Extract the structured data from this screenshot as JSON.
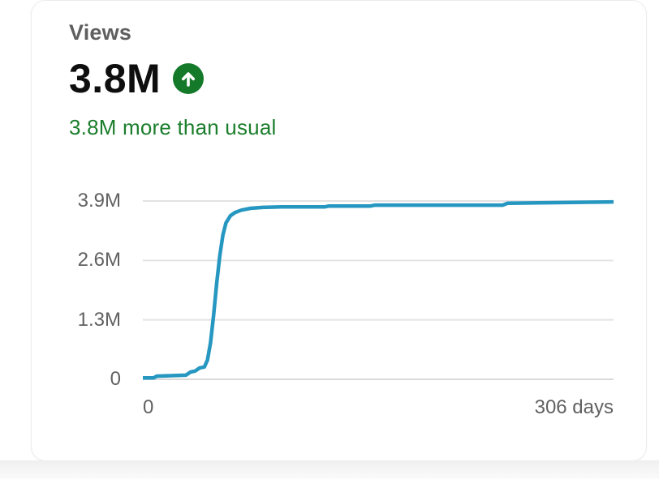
{
  "card": {
    "title": "Views",
    "metric_value": "3.8M",
    "delta_text": "3.8M more than usual",
    "trend_icon": "arrow-up-circle-icon"
  },
  "colors": {
    "line": "#2697c1",
    "positive_text": "#1b7e2c",
    "badge_green": "#15792a",
    "grid": "#e3e3e3",
    "grid_strong": "#d9d9d9",
    "axis_text": "#616161",
    "title_text": "#5f5f5f",
    "metric_text": "#0e0e0e"
  },
  "chart_data": {
    "type": "line",
    "title": "Views",
    "xlabel": "days",
    "ylabel": "views",
    "grid": true,
    "legend": "none",
    "xlim": [
      0,
      306
    ],
    "ylim": [
      0,
      3.9
    ],
    "unit": "millions",
    "x_axis_labels": [
      "0",
      "306 days"
    ],
    "y_ticks": [
      {
        "value": 3.9,
        "label": "3.9M"
      },
      {
        "value": 2.6,
        "label": "2.6M"
      },
      {
        "value": 1.3,
        "label": "1.3M"
      },
      {
        "value": 0,
        "label": "0"
      }
    ],
    "series": [
      {
        "name": "Views",
        "points": [
          [
            0,
            0.03
          ],
          [
            7,
            0.03
          ],
          [
            9,
            0.07
          ],
          [
            28,
            0.09
          ],
          [
            31,
            0.16
          ],
          [
            34,
            0.18
          ],
          [
            37,
            0.25
          ],
          [
            40,
            0.27
          ],
          [
            42,
            0.42
          ],
          [
            44,
            0.8
          ],
          [
            46,
            1.4
          ],
          [
            48,
            2.1
          ],
          [
            50,
            2.7
          ],
          [
            52,
            3.15
          ],
          [
            54,
            3.42
          ],
          [
            57,
            3.58
          ],
          [
            60,
            3.65
          ],
          [
            64,
            3.7
          ],
          [
            70,
            3.74
          ],
          [
            78,
            3.76
          ],
          [
            90,
            3.77
          ],
          [
            118,
            3.77
          ],
          [
            121,
            3.79
          ],
          [
            148,
            3.79
          ],
          [
            151,
            3.81
          ],
          [
            234,
            3.81
          ],
          [
            237,
            3.85
          ],
          [
            306,
            3.88
          ]
        ]
      }
    ]
  }
}
